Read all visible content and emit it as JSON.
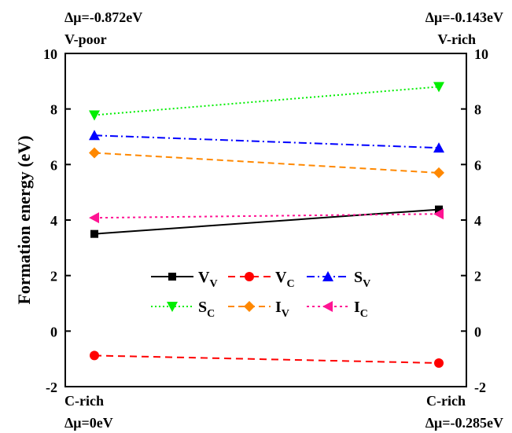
{
  "chart_data": {
    "type": "line",
    "ylabel": "Formation energy (eV)",
    "ylim": [
      -2,
      10
    ],
    "yticks": [
      -2,
      0,
      2,
      4,
      6,
      8,
      10
    ],
    "grid": false,
    "legend": "center",
    "categories": [
      "C-rich",
      "C-rich"
    ],
    "annotations": {
      "top_left": [
        "Δμ=-0.872eV",
        "V-poor"
      ],
      "top_right": [
        "Δμ=-0.143eV",
        "V-rich"
      ],
      "bottom_left": "Δμ=0eV",
      "bottom_right": "Δμ=-0.285eV"
    },
    "series": [
      {
        "name": "V",
        "sub": "V",
        "values": [
          3.5,
          4.38
        ],
        "color": "#000000",
        "marker": "square",
        "dash": ""
      },
      {
        "name": "V",
        "sub": "C",
        "values": [
          -0.88,
          -1.15
        ],
        "color": "#ff0000",
        "marker": "circle",
        "dash": "9,6"
      },
      {
        "name": "S",
        "sub": "V",
        "values": [
          7.05,
          6.6
        ],
        "color": "#0000ff",
        "marker": "triangle-up",
        "dash": "10,4,2,4"
      },
      {
        "name": "S",
        "sub": "C",
        "values": [
          7.78,
          8.8
        ],
        "color": "#00ee00",
        "marker": "triangle-down",
        "dash": "2,3"
      },
      {
        "name": "I",
        "sub": "V",
        "values": [
          6.42,
          5.7
        ],
        "color": "#ff8800",
        "marker": "diamond",
        "dash": "8,5"
      },
      {
        "name": "I",
        "sub": "C",
        "values": [
          4.08,
          4.22
        ],
        "color": "#ff1493",
        "marker": "triangle-left",
        "dash": "3,4"
      }
    ]
  }
}
